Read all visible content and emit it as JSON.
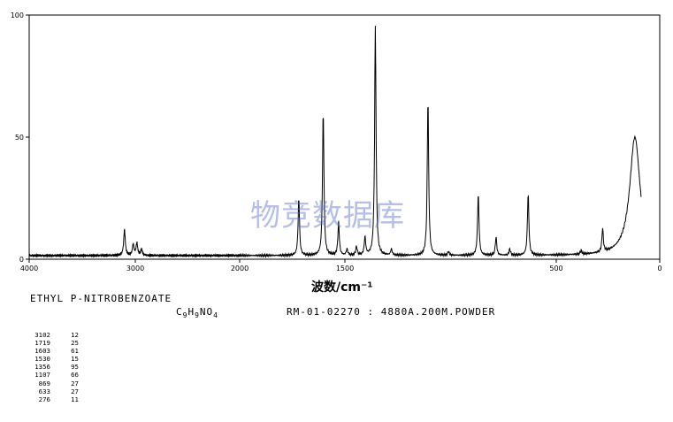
{
  "watermark": "物竞数据库",
  "compound_name": "ETHYL P-NITROBENZOATE",
  "formula": {
    "c": "C",
    "c_n": "9",
    "h": "H",
    "h_n": "9",
    "rest": "NO",
    "o_n": "4"
  },
  "method": "RM-01-02270 : 4880A.200M.POWDER",
  "peak_table": [
    {
      "wavenumber": "3102",
      "intensity": "12"
    },
    {
      "wavenumber": "1719",
      "intensity": "25"
    },
    {
      "wavenumber": "1603",
      "intensity": "61"
    },
    {
      "wavenumber": "1530",
      "intensity": "15"
    },
    {
      "wavenumber": "1356",
      "intensity": "95"
    },
    {
      "wavenumber": "1107",
      "intensity": "66"
    },
    {
      "wavenumber": "869",
      "intensity": "27"
    },
    {
      "wavenumber": "633",
      "intensity": "27"
    },
    {
      "wavenumber": "276",
      "intensity": "11"
    }
  ],
  "chart_data": {
    "type": "line",
    "xlabel": "波数/cm⁻¹",
    "ylabel": "",
    "xlim": [
      4000,
      0
    ],
    "ylim": [
      0,
      100
    ],
    "x_ticks": [
      {
        "v": 4000,
        "label": "4000"
      },
      {
        "v": 3000,
        "label": "3000"
      },
      {
        "v": 2000,
        "label": "2000"
      },
      {
        "v": 1500,
        "label": "1500"
      },
      {
        "v": 500,
        "label": "500"
      },
      {
        "v": 0,
        "label": "0"
      }
    ],
    "y_ticks": [
      {
        "v": 0,
        "label": "0"
      },
      {
        "v": 50,
        "label": "50"
      },
      {
        "v": 100,
        "label": "100"
      }
    ],
    "grid": false,
    "baseline": 1.5,
    "peaks": [
      {
        "x": 3102,
        "y": 12
      },
      {
        "x": 3020,
        "y": 6
      },
      {
        "x": 2985,
        "y": 6.5
      },
      {
        "x": 2940,
        "y": 4
      },
      {
        "x": 1719,
        "y": 25
      },
      {
        "x": 1603,
        "y": 61
      },
      {
        "x": 1530,
        "y": 15
      },
      {
        "x": 1490,
        "y": 4
      },
      {
        "x": 1445,
        "y": 5
      },
      {
        "x": 1405,
        "y": 9
      },
      {
        "x": 1356,
        "y": 95
      },
      {
        "x": 1280,
        "y": 4
      },
      {
        "x": 1107,
        "y": 66
      },
      {
        "x": 1010,
        "y": 3
      },
      {
        "x": 869,
        "y": 27
      },
      {
        "x": 785,
        "y": 9
      },
      {
        "x": 720,
        "y": 4
      },
      {
        "x": 633,
        "y": 27
      },
      {
        "x": 380,
        "y": 3
      },
      {
        "x": 276,
        "y": 11
      },
      {
        "x": 120,
        "y": 50
      }
    ]
  }
}
